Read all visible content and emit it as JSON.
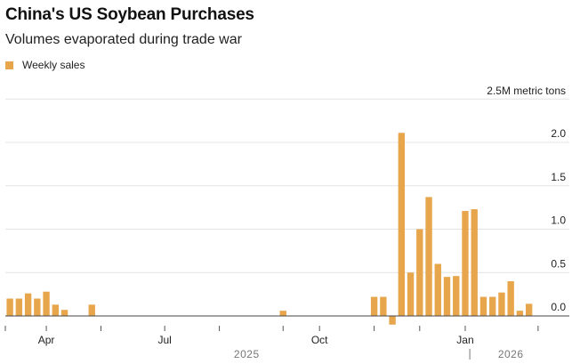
{
  "chart_data": {
    "type": "bar",
    "title": "China's US Soybean Purchases",
    "subtitle": "Volumes evaporated during trade war",
    "legend": [
      "Weekly sales"
    ],
    "unit_label": "2.5M metric tons",
    "ylim": [
      -0.25,
      2.5
    ],
    "yticks": [
      0.0,
      0.5,
      1.0,
      1.5,
      2.0
    ],
    "ytick_labels": [
      "0.0",
      "0.5",
      "1.0",
      "1.5",
      "2.0"
    ],
    "xlabel": "",
    "ylabel": "",
    "n_weeks": 59,
    "x_ticks": [
      {
        "week": 0,
        "label": ""
      },
      {
        "week": 4.5,
        "label": "Apr"
      },
      {
        "week": 10.5,
        "label": ""
      },
      {
        "week": 17.5,
        "label": "Jul"
      },
      {
        "week": 23.5,
        "label": ""
      },
      {
        "week": 30.5,
        "label": ""
      },
      {
        "week": 34.5,
        "label": "Oct"
      },
      {
        "week": 40.5,
        "label": ""
      },
      {
        "week": 45.5,
        "label": ""
      },
      {
        "week": 50.5,
        "label": "Jan"
      },
      {
        "week": 58.5,
        "label": ""
      }
    ],
    "year_labels": [
      {
        "week": 26.5,
        "label": "2025"
      },
      {
        "week": 55.5,
        "label": "2026"
      }
    ],
    "year_divider_week": 51.0,
    "series": [
      {
        "name": "Weekly sales",
        "color": "#E8A64C",
        "values": [
          0.2,
          0.2,
          0.26,
          0.2,
          0.28,
          0.13,
          0.07,
          0.0,
          0.0,
          0.13,
          0.0,
          0.0,
          0.0,
          0.0,
          0.0,
          0.0,
          0.0,
          0.0,
          0.0,
          0.0,
          0.0,
          0.0,
          0.0,
          0.0,
          0.0,
          0.0,
          0.0,
          0.0,
          0.0,
          0.0,
          0.06,
          0.0,
          0.0,
          0.0,
          0.0,
          0.0,
          0.0,
          0.0,
          0.0,
          0.0,
          0.22,
          0.22,
          -0.1,
          2.11,
          0.5,
          1.0,
          1.37,
          0.6,
          0.45,
          0.46,
          1.21,
          1.23,
          0.22,
          0.22,
          0.27,
          0.4,
          0.06,
          0.14,
          0.0
        ]
      }
    ]
  }
}
